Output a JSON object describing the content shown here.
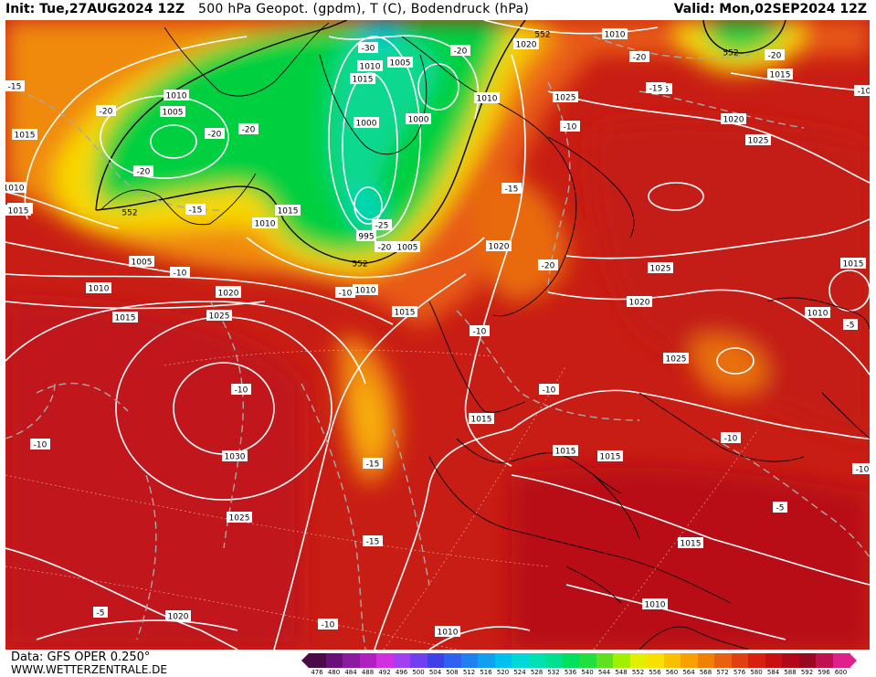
{
  "header": {
    "init": "Init: Tue,27AUG2024 12Z",
    "title": "500 hPa Geopot. (gpdm), T (C), Bodendruck (hPa)",
    "valid": "Valid: Mon,02SEP2024 12Z"
  },
  "footer": {
    "data_source": "Data: GFS OPER 0.250°",
    "website": "WWW.WETTERZENTRALE.DE"
  },
  "colors": {
    "background": "#ffffff",
    "land_outline": "#000000",
    "isobar": "#ffffff",
    "isotherm": "#aaaaaa"
  },
  "legend": {
    "ticks": [
      "476",
      "480",
      "484",
      "488",
      "492",
      "496",
      "500",
      "504",
      "508",
      "512",
      "516",
      "520",
      "524",
      "528",
      "532",
      "536",
      "540",
      "544",
      "548",
      "552",
      "556",
      "560",
      "564",
      "568",
      "572",
      "576",
      "580",
      "584",
      "588",
      "592",
      "596",
      "600"
    ],
    "colors": [
      "#4a0a4a",
      "#6a0f7a",
      "#8a1aa0",
      "#b020c0",
      "#d030e0",
      "#a040f0",
      "#7040f0",
      "#4040e8",
      "#3060f0",
      "#2080f0",
      "#10a0f0",
      "#00c0f0",
      "#00d8d8",
      "#00e0b0",
      "#00e090",
      "#00e060",
      "#20e040",
      "#60e020",
      "#a0f000",
      "#e0f000",
      "#f8e000",
      "#f8c000",
      "#f8a000",
      "#f08000",
      "#e86010",
      "#e04010",
      "#d82010",
      "#c81010",
      "#b00818",
      "#980820",
      "#c01050",
      "#e0208a"
    ]
  },
  "isobar_labels": [
    {
      "t": "1010"
    },
    {
      "t": "1005"
    },
    {
      "t": "1015"
    },
    {
      "t": "1005"
    },
    {
      "t": "1000"
    },
    {
      "t": "995"
    },
    {
      "t": "1005"
    },
    {
      "t": "1000"
    },
    {
      "t": "1010"
    },
    {
      "t": "1015"
    },
    {
      "t": "1010"
    },
    {
      "t": "1020"
    },
    {
      "t": "1010"
    },
    {
      "t": "1025"
    },
    {
      "t": "1020"
    },
    {
      "t": "1025"
    },
    {
      "t": "1020"
    },
    {
      "t": "1025"
    },
    {
      "t": "1015"
    },
    {
      "t": "1010"
    },
    {
      "t": "1005"
    },
    {
      "t": "1010"
    },
    {
      "t": "1015"
    },
    {
      "t": "1020"
    },
    {
      "t": "1025"
    },
    {
      "t": "1030"
    },
    {
      "t": "1025"
    },
    {
      "t": "1020"
    },
    {
      "t": "1015"
    },
    {
      "t": "1015"
    },
    {
      "t": "1015"
    },
    {
      "t": "1015"
    },
    {
      "t": "1020"
    },
    {
      "t": "1025"
    },
    {
      "t": "1015"
    },
    {
      "t": "1010"
    },
    {
      "t": "1015"
    },
    {
      "t": "1010"
    },
    {
      "t": "1010"
    },
    {
      "t": "1015"
    },
    {
      "t": "1025"
    },
    {
      "t": "1015"
    },
    {
      "t": "1010"
    },
    {
      "t": "1015"
    },
    {
      "t": "1020"
    },
    {
      "t": "1010"
    }
  ],
  "isotherm_labels": [
    {
      "t": "-30"
    },
    {
      "t": "-20"
    },
    {
      "t": "-20"
    },
    {
      "t": "-20"
    },
    {
      "t": "-20"
    },
    {
      "t": "-20"
    },
    {
      "t": "-15"
    },
    {
      "t": "-10"
    },
    {
      "t": "-25"
    },
    {
      "t": "-20"
    },
    {
      "t": "-15"
    },
    {
      "t": "-10"
    },
    {
      "t": "-20"
    },
    {
      "t": "-15"
    },
    {
      "t": "-10"
    },
    {
      "t": "-20"
    },
    {
      "t": "-15"
    },
    {
      "t": "-10"
    },
    {
      "t": "-10"
    },
    {
      "t": "-10"
    },
    {
      "t": "-15"
    },
    {
      "t": "-10"
    },
    {
      "t": "-10"
    },
    {
      "t": "-5"
    },
    {
      "t": "-10"
    },
    {
      "t": "-5"
    },
    {
      "t": "-20"
    },
    {
      "t": "-15"
    },
    {
      "t": "-10"
    },
    {
      "t": "-5"
    },
    {
      "t": "-10"
    },
    {
      "t": "-15"
    }
  ],
  "height_labels": [
    {
      "t": "552"
    },
    {
      "t": "552"
    },
    {
      "t": "552"
    },
    {
      "t": "552"
    }
  ]
}
